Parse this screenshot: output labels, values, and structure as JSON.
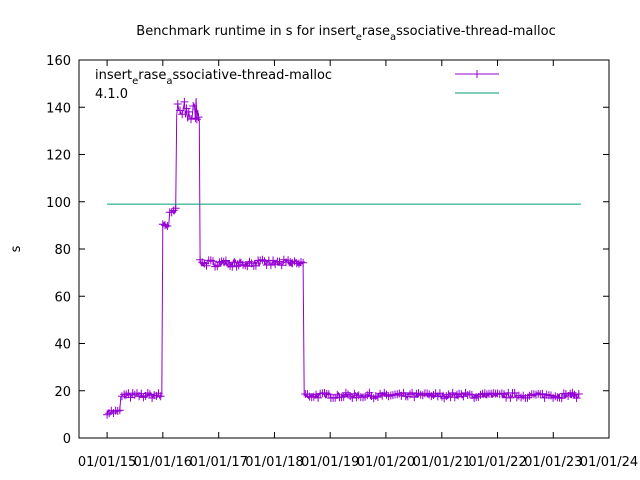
{
  "chart_data": {
    "type": "line",
    "title": "Benchmark runtime in s for insert_erase_associative-thread-malloc",
    "title_parts": {
      "a": "Benchmark runtime in s for insert",
      "b": "e",
      "c": "rase",
      "d": "a",
      "e": "ssociative-thread-malloc"
    },
    "ylabel": "s",
    "xlabel": "",
    "ylim": [
      0,
      160
    ],
    "yticks": [
      "0",
      "20",
      "40",
      "60",
      "80",
      "100",
      "120",
      "140",
      "160"
    ],
    "xticks": [
      "01/01/15",
      "01/01/16",
      "01/01/17",
      "01/01/18",
      "01/01/19",
      "01/01/20",
      "01/01/21",
      "01/01/22",
      "01/01/23",
      "01/01/24"
    ],
    "xlim": [
      "2014-07-01",
      "2024-01-01"
    ],
    "legend_position": "top-right",
    "grid": false,
    "series": [
      {
        "name": "insert_erase_associative-thread-malloc",
        "name_parts": {
          "a": "insert",
          "b": "e",
          "c": "rase",
          "d": "a",
          "e": "ssociative-thread-malloc"
        },
        "color": "#9400d3",
        "marker": "plus",
        "segments": [
          {
            "from": "2015-01-01",
            "to": "2015-04-01",
            "value": 11
          },
          {
            "from": "2015-04-01",
            "to": "2016-01-01",
            "value": 18
          },
          {
            "from": "2016-01-01",
            "to": "2016-02-15",
            "value": 90
          },
          {
            "from": "2016-02-15",
            "to": "2016-04-01",
            "value": 96
          },
          {
            "from": "2016-04-01",
            "to": "2016-08-01",
            "value": 137
          },
          {
            "from": "2016-08-01",
            "to": "2016-09-01",
            "value": 140
          },
          {
            "from": "2016-09-01",
            "to": "2018-07-15",
            "value": 74
          },
          {
            "from": "2018-07-15",
            "to": "2023-07-01",
            "value": 18
          }
        ]
      },
      {
        "name": "4.1.0",
        "color": "#009e73",
        "marker": "none",
        "x": [
          "2015-01-01",
          "2023-07-01"
        ],
        "y": [
          99,
          99
        ]
      }
    ]
  }
}
